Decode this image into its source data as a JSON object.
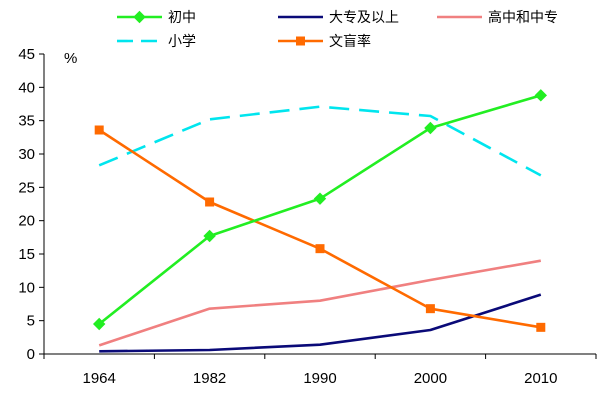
{
  "chart_data": {
    "type": "line",
    "categories": [
      "1964",
      "1982",
      "1990",
      "2000",
      "2010"
    ],
    "y_unit": "%",
    "ylim": [
      0,
      45
    ],
    "y_ticks": [
      0,
      5,
      10,
      15,
      20,
      25,
      30,
      35,
      40,
      45
    ],
    "grid": false,
    "legend_position": "top",
    "series": [
      {
        "name": "初中",
        "values": [
          4.5,
          17.7,
          23.3,
          33.9,
          38.8
        ],
        "color": "#22ee22",
        "marker": "diamond",
        "dash": "solid"
      },
      {
        "name": "大专及以上",
        "values": [
          0.4,
          0.6,
          1.4,
          3.6,
          8.9
        ],
        "color": "#0a0a78",
        "marker": "none",
        "dash": "solid"
      },
      {
        "name": "高中和中专",
        "values": [
          1.3,
          6.8,
          8.0,
          11.1,
          14.0
        ],
        "color": "#f08080",
        "marker": "none",
        "dash": "solid"
      },
      {
        "name": "小学",
        "values": [
          28.3,
          35.2,
          37.1,
          35.7,
          26.8
        ],
        "color": "#00e5ee",
        "marker": "none",
        "dash": "dashed"
      },
      {
        "name": "文盲率",
        "values": [
          33.6,
          22.8,
          15.8,
          6.8,
          4.0
        ],
        "color": "#ff6a00",
        "marker": "square",
        "dash": "solid"
      }
    ]
  }
}
